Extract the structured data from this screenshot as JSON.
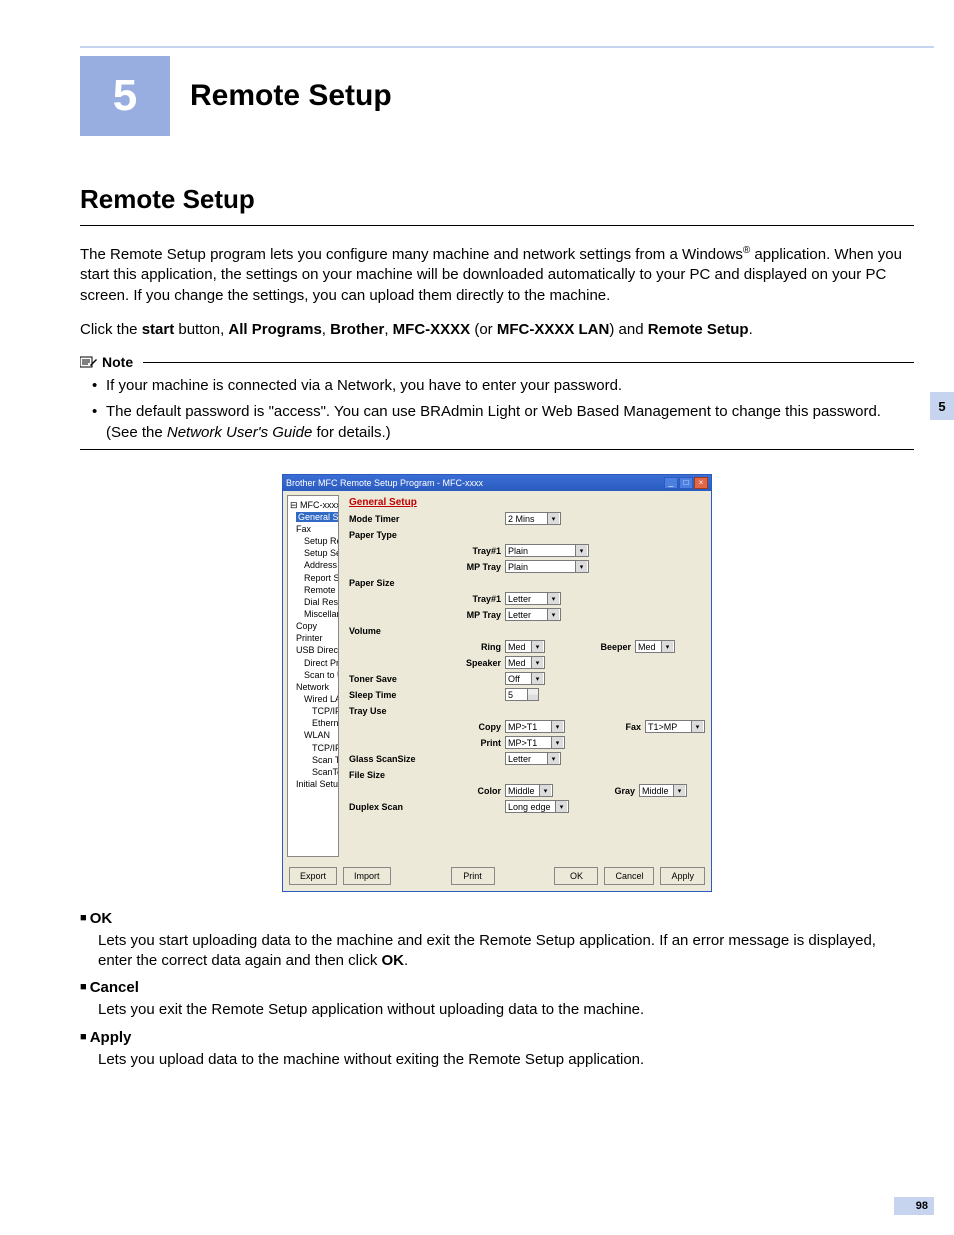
{
  "chapter": {
    "number": "5",
    "title": "Remote Setup"
  },
  "side_tab": "5",
  "page_number": "98",
  "section": {
    "heading": "Remote Setup",
    "intro_html": "The Remote Setup program lets you configure many machine and network settings from a Windows<sup class='sup'>®</sup> application. When you start this application, the settings on your machine will be downloaded automatically to your PC and displayed on your PC screen. If you change the settings, you can upload them directly to the machine.",
    "click_html": "Click the <span class='bold'>start</span> button, <span class='bold'>All Programs</span>, <span class='bold'>Brother</span>, <span class='bold'>MFC-XXXX</span> (or <span class='bold'>MFC-XXXX LAN</span>) and <span class='bold'>Remote Setup</span>."
  },
  "note": {
    "label": "Note",
    "items": [
      "If your machine is connected via a Network, you have to enter your password.",
      "The default password is \"access\". You can use BRAdmin Light or Web Based Management to change this password. (See the <span class='italic'>Network User's Guide</span> for details.)"
    ]
  },
  "screenshot": {
    "title": "Brother MFC Remote Setup Program - MFC-xxxx",
    "tree": {
      "root": "MFC-xxxx",
      "selected": "General Setup",
      "nodes": [
        {
          "lvl": 1,
          "label": "Fax"
        },
        {
          "lvl": 2,
          "label": "Setup Receive"
        },
        {
          "lvl": 2,
          "label": "Setup Send"
        },
        {
          "lvl": 2,
          "label": "Address Book"
        },
        {
          "lvl": 2,
          "label": "Report Setting"
        },
        {
          "lvl": 2,
          "label": "Remote Fax Opt"
        },
        {
          "lvl": 2,
          "label": "Dial Restrict."
        },
        {
          "lvl": 2,
          "label": "Miscellaneous"
        },
        {
          "lvl": 1,
          "label": "Copy"
        },
        {
          "lvl": 1,
          "label": "Printer"
        },
        {
          "lvl": 1,
          "label": "USB Direct I/F"
        },
        {
          "lvl": 2,
          "label": "Direct Print"
        },
        {
          "lvl": 2,
          "label": "Scan to USB"
        },
        {
          "lvl": 1,
          "label": "Network"
        },
        {
          "lvl": 2,
          "label": "Wired LAN"
        },
        {
          "lvl": 3,
          "label": "TCP/IP"
        },
        {
          "lvl": 3,
          "label": "Ethernet"
        },
        {
          "lvl": 2,
          "label": "WLAN"
        },
        {
          "lvl": 3,
          "label": "TCP/IP"
        },
        {
          "lvl": 3,
          "label": "Scan To FTP"
        },
        {
          "lvl": 3,
          "label": "ScanToNetwork"
        },
        {
          "lvl": 1,
          "label": "Initial Setup"
        }
      ]
    },
    "form": {
      "title": "General Setup",
      "labels": {
        "mode_timer": "Mode Timer",
        "paper_type": "Paper Type",
        "tray1": "Tray#1",
        "mp_tray": "MP Tray",
        "paper_size": "Paper Size",
        "volume": "Volume",
        "ring": "Ring",
        "beeper": "Beeper",
        "speaker": "Speaker",
        "toner_save": "Toner Save",
        "sleep_time": "Sleep Time",
        "tray_use": "Tray Use",
        "copy": "Copy",
        "fax": "Fax",
        "print": "Print",
        "glass_scan": "Glass ScanSize",
        "file_size": "File Size",
        "color": "Color",
        "gray": "Gray",
        "duplex_scan": "Duplex Scan"
      },
      "values": {
        "mode_timer": "2 Mins",
        "pt_tray1": "Plain",
        "pt_mp": "Plain",
        "ps_tray1": "Letter",
        "ps_mp": "Letter",
        "ring": "Med",
        "beeper": "Med",
        "speaker": "Med",
        "toner": "Off",
        "sleep": "5",
        "tu_copy": "MP>T1",
        "tu_fax": "T1>MP",
        "tu_print": "MP>T1",
        "glass": "Letter",
        "fs_color": "Middle",
        "fs_gray": "Middle",
        "duplex": "Long edge"
      }
    },
    "buttons": {
      "export": "Export",
      "import": "Import",
      "print": "Print",
      "ok": "OK",
      "cancel": "Cancel",
      "apply": "Apply"
    }
  },
  "definitions": [
    {
      "term": "OK",
      "body_html": "Lets you start uploading data to the machine and exit the Remote Setup application. If an error message is displayed, enter the correct data again and then click <span class='bold'>OK</span>."
    },
    {
      "term": "Cancel",
      "body_html": "Lets you exit the Remote Setup application without uploading data to the machine."
    },
    {
      "term": "Apply",
      "body_html": "Lets you upload data to the machine without exiting the Remote Setup application."
    }
  ]
}
